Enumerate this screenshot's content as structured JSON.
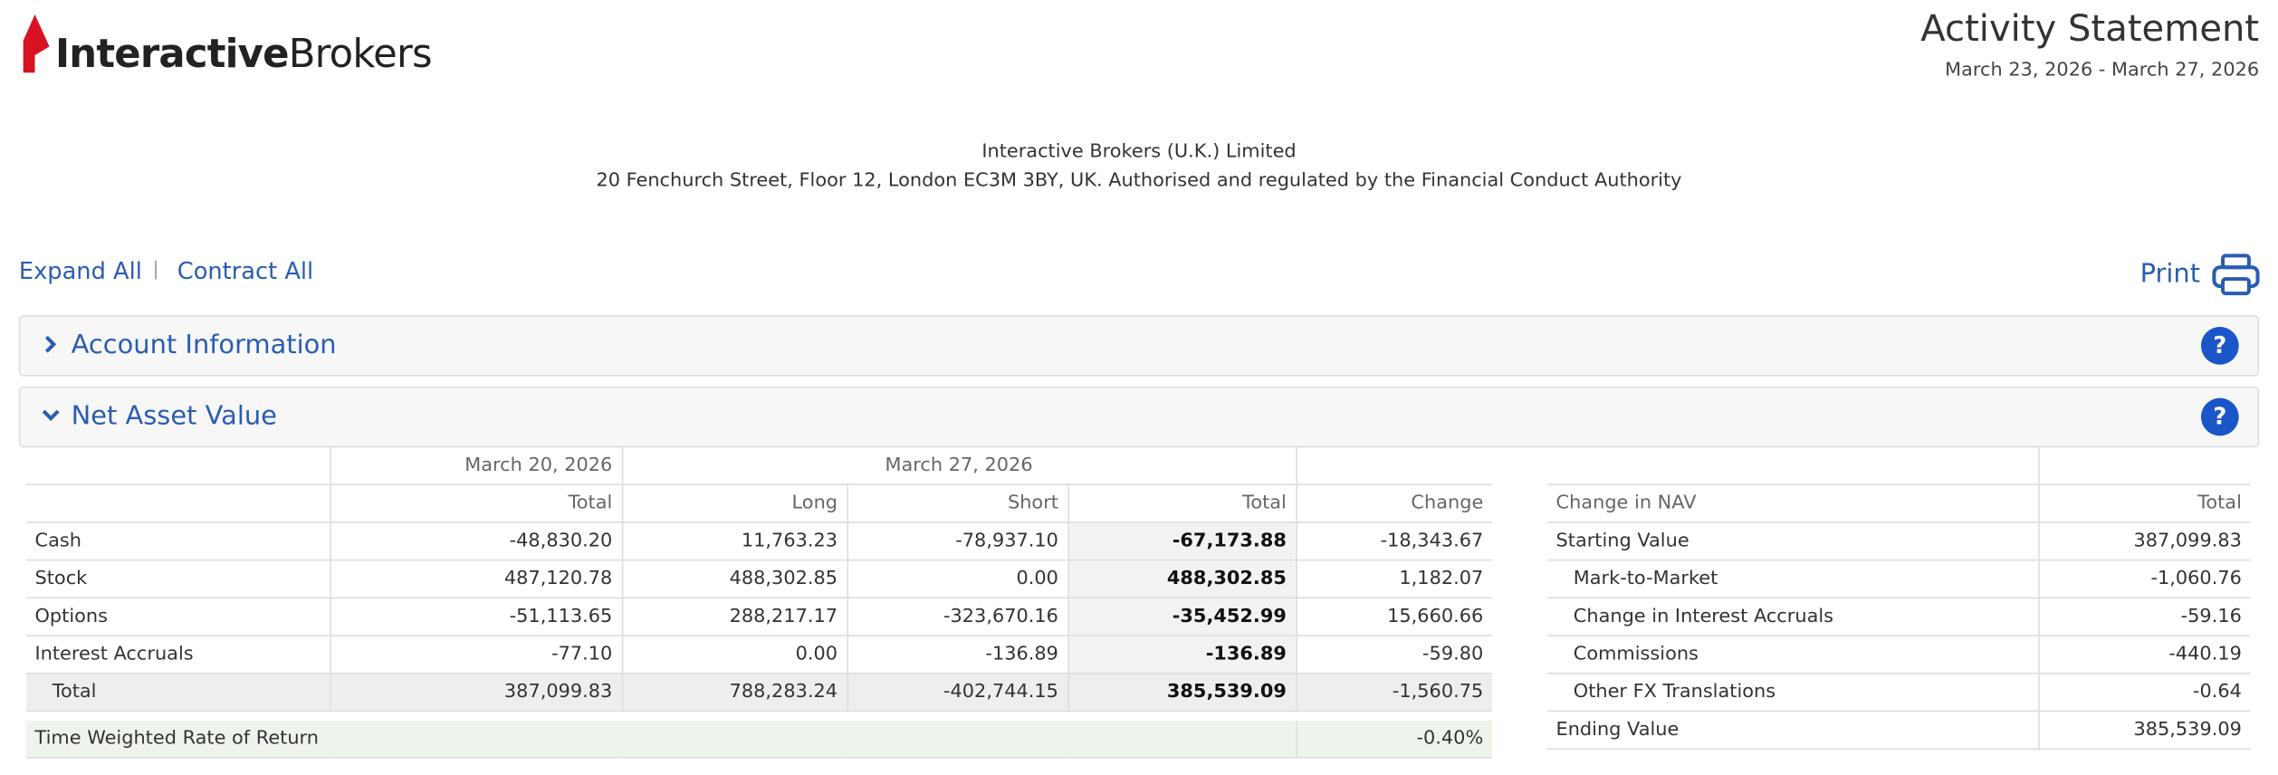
{
  "header": {
    "logo_bold": "Interactive",
    "logo_light": "Brokers",
    "title": "Activity Statement",
    "period": "March 23, 2026 - March 27, 2026"
  },
  "company": {
    "name": "Interactive Brokers (U.K.) Limited",
    "address": "20 Fenchurch Street, Floor 12, London EC3M 3BY, UK. Authorised and regulated by the Financial Conduct Authority"
  },
  "toolbar": {
    "expand": "Expand All",
    "separator": "|",
    "contract": "Contract All",
    "print": "Print"
  },
  "sections": [
    {
      "title": "Account Information",
      "expanded": false,
      "help": "?"
    },
    {
      "title": "Net Asset Value",
      "expanded": true,
      "help": "?"
    }
  ],
  "nav_table": {
    "group_headers": [
      "March 20, 2026",
      "March 27, 2026"
    ],
    "columns": [
      "Total",
      "Long",
      "Short",
      "Total",
      "Change"
    ],
    "rows": [
      {
        "label": "Cash",
        "cells": [
          "-48,830.20",
          "11,763.23",
          "-78,937.10",
          "-67,173.88",
          "-18,343.67"
        ]
      },
      {
        "label": "Stock",
        "cells": [
          "487,120.78",
          "488,302.85",
          "0.00",
          "488,302.85",
          "1,182.07"
        ]
      },
      {
        "label": "Options",
        "cells": [
          "-51,113.65",
          "288,217.17",
          "-323,670.16",
          "-35,452.99",
          "15,660.66"
        ]
      },
      {
        "label": "Interest Accruals",
        "cells": [
          "-77.10",
          "0.00",
          "-136.89",
          "-136.89",
          "-59.80"
        ]
      }
    ],
    "total_row": {
      "label": "Total",
      "cells": [
        "387,099.83",
        "788,283.24",
        "-402,744.15",
        "385,539.09",
        "-1,560.75"
      ]
    },
    "twr": {
      "label": "Time Weighted Rate of Return",
      "value": "-0.40%"
    }
  },
  "change_table": {
    "columns": [
      "Change in NAV",
      "Total"
    ],
    "starting": {
      "label": "Starting Value",
      "value": "387,099.83"
    },
    "items": [
      {
        "label": "Mark-to-Market",
        "value": "-1,060.76"
      },
      {
        "label": "Change in Interest Accruals",
        "value": "-59.16"
      },
      {
        "label": "Commissions",
        "value": "-440.19"
      },
      {
        "label": "Other FX Translations",
        "value": "-0.64"
      }
    ],
    "ending": {
      "label": "Ending Value",
      "value": "385,539.09"
    }
  }
}
